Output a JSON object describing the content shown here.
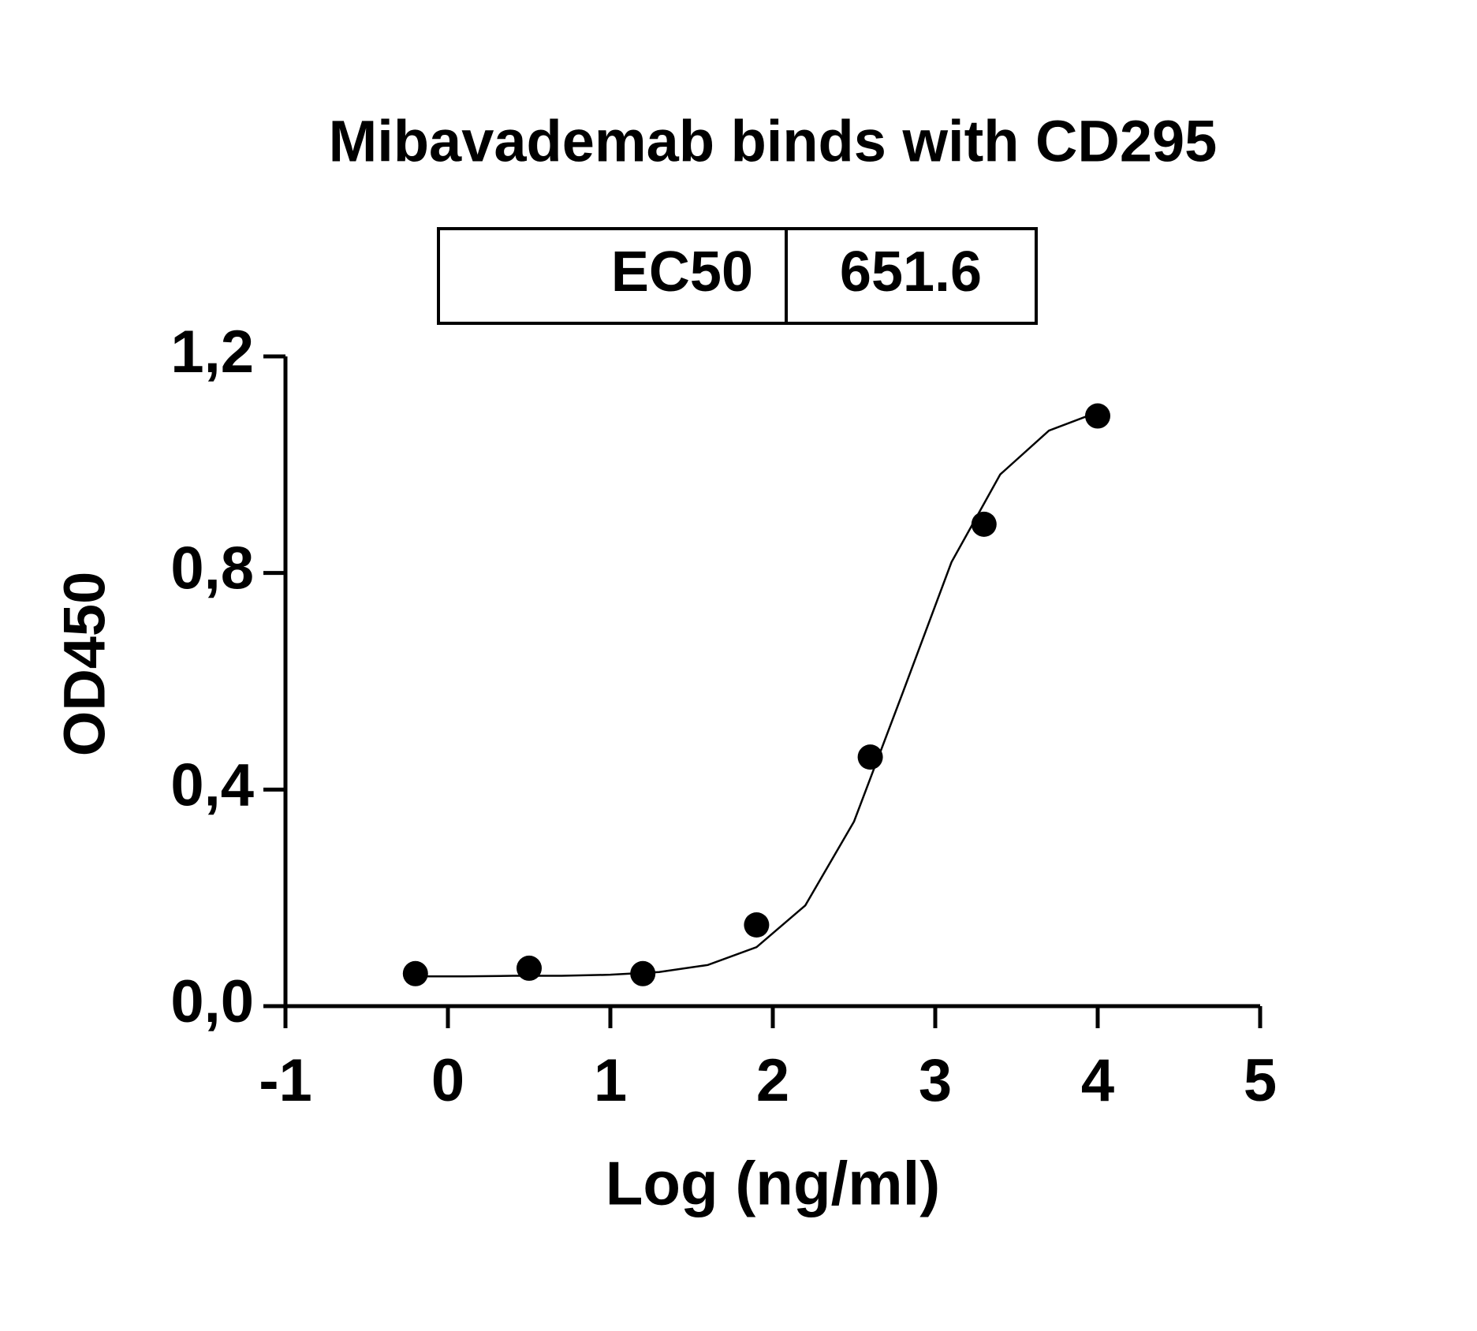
{
  "chart_data": {
    "type": "scatter",
    "title": "Mibavademab binds with CD295",
    "table": {
      "label": "EC50",
      "value": 651.6
    },
    "x_label": "Log (ng/ml)",
    "y_label": "OD450",
    "xlim": [
      -1,
      5
    ],
    "xticks": [
      -1,
      0,
      1,
      2,
      3,
      4,
      5
    ],
    "ylim": [
      0,
      1.2
    ],
    "yticks": [
      {
        "value": 0,
        "label": "0,0"
      },
      {
        "value": 0.4,
        "label": "0,4"
      },
      {
        "value": 0.8,
        "label": "0,8"
      },
      {
        "value": 1.2,
        "label": "1,2"
      }
    ],
    "series": [
      {
        "mode": "points",
        "color": "#000000",
        "x": [
          -0.2,
          0.5,
          1.2,
          1.9,
          2.6,
          3.3,
          4.0
        ],
        "values": [
          0.06,
          0.07,
          0.06,
          0.15,
          0.46,
          0.89,
          1.09
        ]
      },
      {
        "mode": "line",
        "color": "#000000",
        "x": [
          -0.2,
          0.1,
          0.4,
          0.7,
          1.0,
          1.3,
          1.6,
          1.9,
          2.2,
          2.5,
          2.8,
          3.1,
          3.4,
          3.7,
          4.0
        ],
        "values": [
          0.055,
          0.055,
          0.056,
          0.056,
          0.058,
          0.063,
          0.076,
          0.109,
          0.186,
          0.341,
          0.579,
          0.82,
          0.982,
          1.063,
          1.097
        ]
      }
    ]
  }
}
